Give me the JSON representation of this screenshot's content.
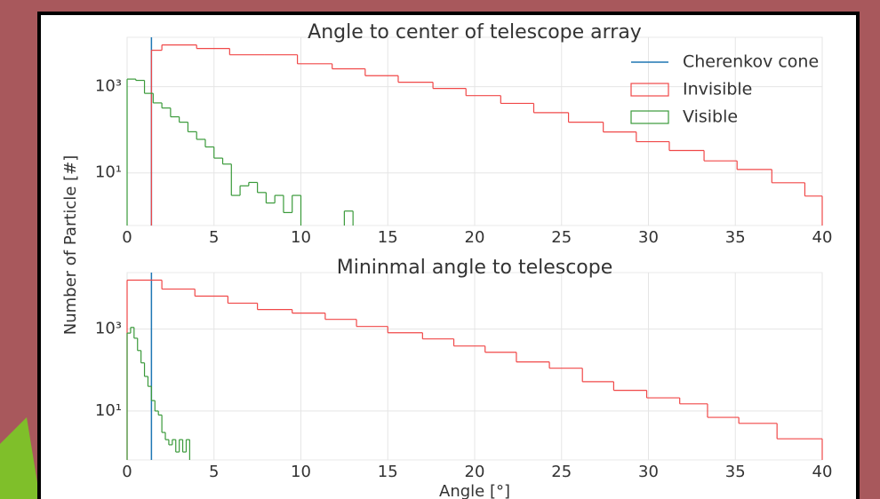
{
  "chart_data": [
    {
      "type": "histogram",
      "title": "Angle to center of telescope array",
      "ylabel": "Number of Particle [#]",
      "xlim": [
        0,
        40
      ],
      "xticks": [
        0,
        5,
        10,
        15,
        20,
        25,
        30,
        35,
        40
      ],
      "ylim": [
        0.6,
        14000
      ],
      "log_y": true,
      "yticks": [
        {
          "value": 10,
          "label": "10¹"
        },
        {
          "value": 1000,
          "label": "10³"
        }
      ],
      "grid": true,
      "legend": "upper right",
      "series": [
        {
          "name": "Cherenkov cone",
          "color": "#1f77b4",
          "x": 1.4
        },
        {
          "name": "Invisible",
          "color": "#f04848",
          "bins": [
            1.4,
            2,
            4,
            5.9,
            7.9,
            9.8,
            11.8,
            13.7,
            15.6,
            17.6,
            19.5,
            21.5,
            23.4,
            25.4,
            27.4,
            29.3,
            31.2,
            33.2,
            35.1,
            37.1,
            39,
            40
          ],
          "values": [
            7000,
            9300,
            7700,
            5500,
            5500,
            3400,
            2600,
            1800,
            1270,
            910,
            620,
            410,
            250,
            150,
            89,
            53,
            33,
            19,
            12,
            5.9,
            2.9
          ]
        },
        {
          "name": "Visible",
          "color": "#3a9a3a",
          "bins": [
            0,
            0.5,
            1,
            1.5,
            2,
            2.5,
            3,
            3.5,
            4,
            4.5,
            5,
            5.5,
            6,
            6.5,
            7,
            7.5,
            8,
            8.5,
            9,
            9.5,
            10,
            10.5,
            11,
            11.5,
            12,
            12.5,
            13,
            13.5
          ],
          "values": [
            1500,
            1400,
            700,
            420,
            320,
            200,
            150,
            90,
            60,
            40,
            22,
            16,
            3,
            5,
            6,
            3.5,
            2,
            3,
            1.2,
            3,
            0,
            0,
            0,
            0,
            0,
            1.3,
            0
          ]
        }
      ]
    },
    {
      "type": "histogram",
      "title": "Mininmal angle to telescope",
      "xlabel": "Angle [°]",
      "xlim": [
        0,
        40
      ],
      "xticks": [
        0,
        5,
        10,
        15,
        20,
        25,
        30,
        35,
        40
      ],
      "ylim": [
        0.64,
        24000
      ],
      "log_y": true,
      "yticks": [
        {
          "value": 10,
          "label": "10¹"
        },
        {
          "value": 1000,
          "label": "10³"
        }
      ],
      "grid": true,
      "series": [
        {
          "name": "Cherenkov cone",
          "color": "#1f77b4",
          "x": 1.4
        },
        {
          "name": "Invisible",
          "color": "#f04848",
          "bins": [
            0,
            2,
            3.9,
            5.8,
            7.5,
            9.5,
            11.4,
            13.2,
            15,
            17,
            18.8,
            20.6,
            22.4,
            24.3,
            26.2,
            28,
            29.9,
            31.8,
            33.4,
            35.2,
            37.4,
            40
          ],
          "values": [
            15700,
            9500,
            6400,
            4300,
            3000,
            2460,
            1730,
            1160,
            815,
            577,
            387,
            272,
            158,
            111,
            52,
            32,
            21,
            15,
            7,
            5,
            2.1
          ]
        },
        {
          "name": "Visible",
          "color": "#3a9a3a",
          "bins": [
            0,
            0.2,
            0.4,
            0.6,
            0.8,
            1,
            1.2,
            1.4,
            1.6,
            1.8,
            2,
            2.2,
            2.4,
            2.6,
            2.8,
            3,
            3.2,
            3.4,
            3.6
          ],
          "values": [
            800,
            1100,
            600,
            300,
            150,
            70,
            40,
            18,
            10,
            8,
            3,
            2,
            1.5,
            2,
            1,
            2,
            1,
            2
          ]
        }
      ]
    }
  ]
}
